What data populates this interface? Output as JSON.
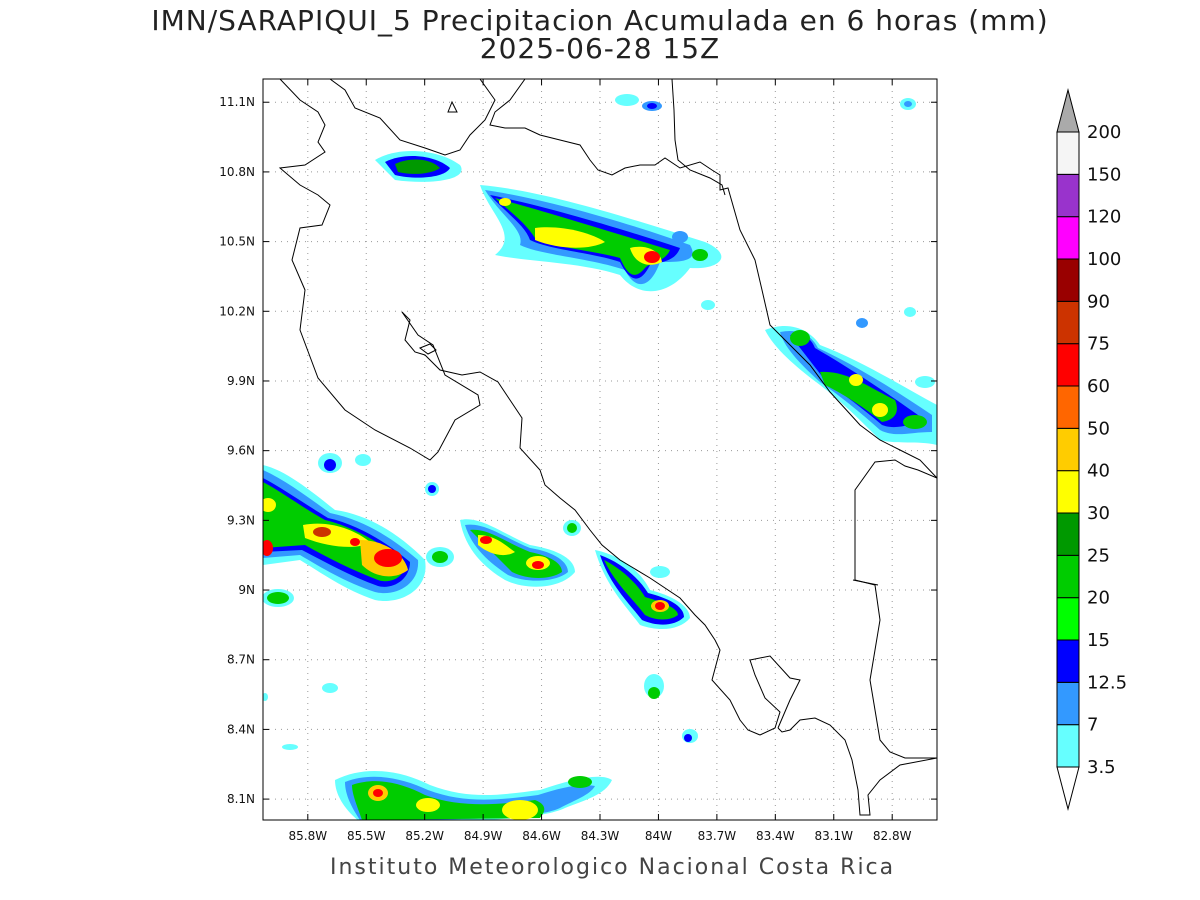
{
  "title_line1": "IMN/SARAPIQUI_5 Precipitacion Acumulada en 6 horas (mm)",
  "title_line2": "2025-06-28 15Z",
  "footer": "Instituto Meteorologico Nacional Costa Rica",
  "map": {
    "lon_range": [
      -86.03,
      -82.57
    ],
    "lat_range": [
      8.01,
      11.2
    ],
    "lon_ticks": [
      "85.8W",
      "85.5W",
      "85.2W",
      "84.9W",
      "84.6W",
      "84.3W",
      "84W",
      "83.7W",
      "83.4W",
      "83.1W",
      "82.8W"
    ],
    "lon_tick_values": [
      -85.8,
      -85.5,
      -85.2,
      -84.9,
      -84.6,
      -84.3,
      -84.0,
      -83.7,
      -83.4,
      -83.1,
      -82.8
    ],
    "lat_ticks": [
      "8.1N",
      "8.4N",
      "8.7N",
      "9N",
      "9.3N",
      "9.6N",
      "9.9N",
      "10.2N",
      "10.5N",
      "10.8N",
      "11.1N"
    ],
    "lat_tick_values": [
      8.1,
      8.4,
      8.7,
      9.0,
      9.3,
      9.6,
      9.9,
      10.2,
      10.5,
      10.8,
      11.1
    ],
    "grid": "dotted"
  },
  "colorbar": {
    "levels": [
      "3.5",
      "7",
      "12.5",
      "15",
      "20",
      "25",
      "30",
      "40",
      "50",
      "60",
      "75",
      "90",
      "100",
      "120",
      "150",
      "200"
    ],
    "colors": [
      "#66ffff",
      "#3399ff",
      "#0000ff",
      "#00ff00",
      "#00cc00",
      "#009900",
      "#ffff00",
      "#ffcc00",
      "#ff6600",
      "#ff0000",
      "#cc3300",
      "#990000",
      "#ff00ff",
      "#9933cc",
      "#f5f5f5",
      "#aaaaaa"
    ]
  }
}
